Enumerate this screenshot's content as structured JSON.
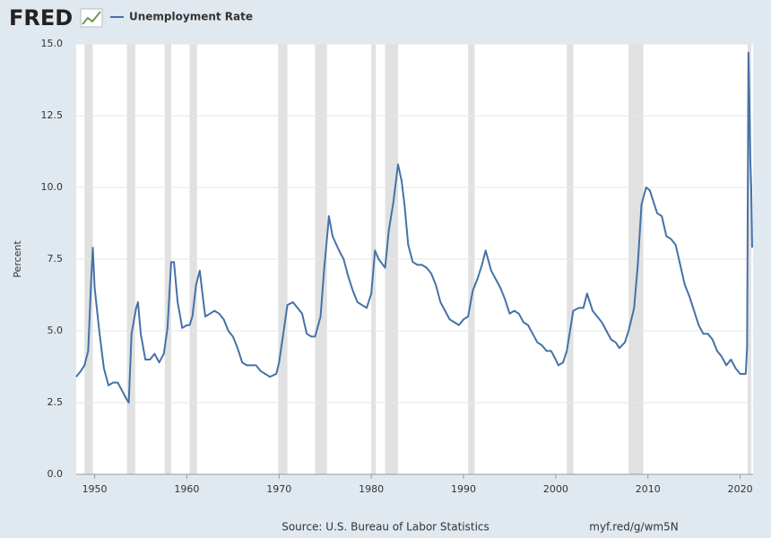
{
  "chart_data": {
    "type": "line",
    "logo": "FRED",
    "ylabel": "Percent",
    "source": "Source: U.S. Bureau of Labor Statistics",
    "link": "myf.red/g/wm5N",
    "xlim": [
      1948,
      2021.4
    ],
    "xticks": [
      1950,
      1960,
      1970,
      1980,
      1990,
      2000,
      2010,
      2020
    ],
    "ylim": [
      0,
      15
    ],
    "yticks": [
      {
        "value": 0,
        "label": "0.0"
      },
      {
        "value": 2.5,
        "label": "2.5"
      },
      {
        "value": 5,
        "label": "5.0"
      },
      {
        "value": 7.5,
        "label": "7.5"
      },
      {
        "value": 10,
        "label": "10.0"
      },
      {
        "value": 12.5,
        "label": "12.5"
      },
      {
        "value": 15,
        "label": "15.0"
      }
    ],
    "grid": true,
    "recession_color": "#e1e1e1",
    "recessions": [
      [
        1948.9,
        1949.8
      ],
      [
        1953.5,
        1954.4
      ],
      [
        1957.6,
        1958.3
      ],
      [
        1960.3,
        1961.1
      ],
      [
        1969.9,
        1970.9
      ],
      [
        1973.9,
        1975.2
      ],
      [
        1980.0,
        1980.5
      ],
      [
        1981.5,
        1982.9
      ],
      [
        1990.5,
        1991.2
      ],
      [
        2001.2,
        2001.9
      ],
      [
        2007.9,
        2009.5
      ],
      [
        2020.8,
        2021.2
      ]
    ],
    "x": [
      1948.0,
      1948.5,
      1948.9,
      1949.3,
      1949.6,
      1949.8,
      1950.0,
      1950.5,
      1951.0,
      1951.5,
      1952.0,
      1952.5,
      1953.0,
      1953.5,
      1953.7,
      1954.0,
      1954.5,
      1954.7,
      1955.0,
      1955.5,
      1956.0,
      1956.5,
      1957.0,
      1957.5,
      1957.9,
      1958.3,
      1958.6,
      1959.0,
      1959.5,
      1960.0,
      1960.3,
      1960.6,
      1961.0,
      1961.4,
      1961.8,
      1962.0,
      1962.5,
      1963.0,
      1963.5,
      1964.0,
      1964.5,
      1965.0,
      1965.5,
      1966.0,
      1966.5,
      1967.0,
      1967.5,
      1968.0,
      1968.5,
      1969.0,
      1969.7,
      1970.0,
      1970.5,
      1970.9,
      1971.5,
      1972.0,
      1972.5,
      1973.0,
      1973.5,
      1973.9,
      1974.5,
      1974.9,
      1975.3,
      1975.4,
      1975.8,
      1976.5,
      1977.0,
      1977.5,
      1978.0,
      1978.5,
      1979.0,
      1979.5,
      1980.0,
      1980.4,
      1980.8,
      1981.5,
      1981.9,
      1982.4,
      1982.9,
      1983.3,
      1983.6,
      1984.0,
      1984.5,
      1985.0,
      1985.5,
      1986.0,
      1986.5,
      1987.0,
      1987.5,
      1988.0,
      1988.5,
      1989.0,
      1989.5,
      1990.0,
      1990.5,
      1991.0,
      1991.5,
      1992.0,
      1992.4,
      1993.0,
      1993.5,
      1994.0,
      1994.5,
      1995.0,
      1995.5,
      1996.0,
      1996.5,
      1997.0,
      1997.5,
      1998.0,
      1998.5,
      1999.0,
      1999.5,
      2000.0,
      2000.3,
      2000.8,
      2001.2,
      2001.9,
      2002.5,
      2003.0,
      2003.4,
      2004.0,
      2004.5,
      2005.0,
      2005.5,
      2006.0,
      2006.5,
      2006.9,
      2007.5,
      2007.9,
      2008.5,
      2008.9,
      2009.3,
      2009.8,
      2010.2,
      2010.7,
      2011.0,
      2011.5,
      2012.0,
      2012.5,
      2013.0,
      2013.5,
      2014.0,
      2014.5,
      2015.0,
      2015.5,
      2016.0,
      2016.5,
      2017.0,
      2017.5,
      2018.0,
      2018.5,
      2019.0,
      2019.5,
      2020.0,
      2020.6,
      2020.75,
      2020.9,
      2021.0,
      2021.1,
      2021.2,
      2021.3
    ],
    "series": [
      {
        "name": "Unemployment Rate",
        "color": "#4572a7",
        "values": [
          3.4,
          3.6,
          3.8,
          4.3,
          6.6,
          7.9,
          6.5,
          5.0,
          3.7,
          3.1,
          3.2,
          3.2,
          2.9,
          2.6,
          2.5,
          4.9,
          5.8,
          6.0,
          4.9,
          4.0,
          4.0,
          4.2,
          3.9,
          4.2,
          5.1,
          7.4,
          7.4,
          6.0,
          5.1,
          5.2,
          5.2,
          5.5,
          6.6,
          7.1,
          6.0,
          5.5,
          5.6,
          5.7,
          5.6,
          5.4,
          5.0,
          4.8,
          4.4,
          3.9,
          3.8,
          3.8,
          3.8,
          3.6,
          3.5,
          3.4,
          3.5,
          3.9,
          5.0,
          5.9,
          6.0,
          5.8,
          5.6,
          4.9,
          4.8,
          4.8,
          5.5,
          7.2,
          8.6,
          9.0,
          8.3,
          7.8,
          7.5,
          6.9,
          6.4,
          6.0,
          5.9,
          5.8,
          6.3,
          7.8,
          7.5,
          7.2,
          8.5,
          9.5,
          10.8,
          10.2,
          9.4,
          8.0,
          7.4,
          7.3,
          7.3,
          7.2,
          7.0,
          6.6,
          6.0,
          5.7,
          5.4,
          5.3,
          5.2,
          5.4,
          5.5,
          6.4,
          6.8,
          7.3,
          7.8,
          7.1,
          6.8,
          6.5,
          6.1,
          5.6,
          5.7,
          5.6,
          5.3,
          5.2,
          4.9,
          4.6,
          4.5,
          4.3,
          4.3,
          4.0,
          3.8,
          3.9,
          4.3,
          5.7,
          5.8,
          5.8,
          6.3,
          5.7,
          5.5,
          5.3,
          5.0,
          4.7,
          4.6,
          4.4,
          4.6,
          5.0,
          5.8,
          7.3,
          9.4,
          10.0,
          9.9,
          9.4,
          9.1,
          9.0,
          8.3,
          8.2,
          8.0,
          7.3,
          6.6,
          6.2,
          5.7,
          5.2,
          4.9,
          4.9,
          4.7,
          4.3,
          4.1,
          3.8,
          4.0,
          3.7,
          3.5,
          3.5,
          4.4,
          14.7,
          13.0,
          11.0,
          10.0,
          7.9
        ]
      }
    ]
  }
}
